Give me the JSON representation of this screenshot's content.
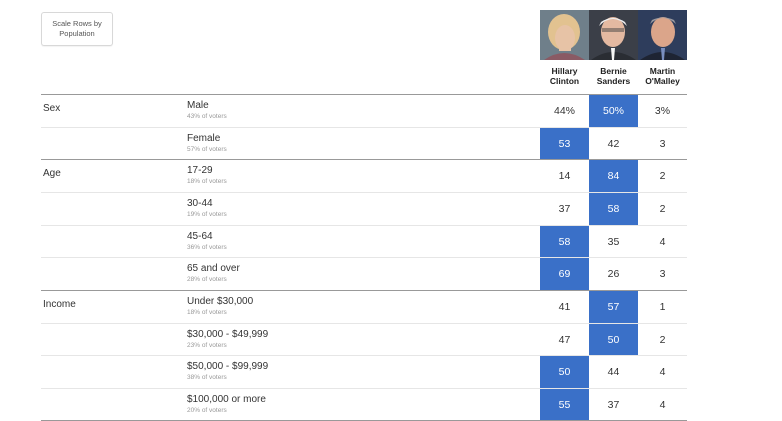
{
  "controls": {
    "scale_button": "Scale Rows by Population"
  },
  "candidates": [
    {
      "first": "Hillary",
      "last": "Clinton",
      "photo": "hillary-clinton-photo"
    },
    {
      "first": "Bernie",
      "last": "Sanders",
      "photo": "bernie-sanders-photo"
    },
    {
      "first": "Martin",
      "last": "O'Malley",
      "photo": "martin-omalley-photo"
    }
  ],
  "rows": [
    {
      "group": "Sex",
      "label": "Male",
      "share": "43% of voters",
      "values": [
        "44%",
        "50%",
        "3%"
      ],
      "winner": 1
    },
    {
      "group": "",
      "label": "Female",
      "share": "57% of voters",
      "values": [
        "53",
        "42",
        "3"
      ],
      "winner": 0
    },
    {
      "group": "Age",
      "label": "17-29",
      "share": "18% of voters",
      "values": [
        "14",
        "84",
        "2"
      ],
      "winner": 1
    },
    {
      "group": "",
      "label": "30-44",
      "share": "19% of voters",
      "values": [
        "37",
        "58",
        "2"
      ],
      "winner": 1
    },
    {
      "group": "",
      "label": "45-64",
      "share": "36% of voters",
      "values": [
        "58",
        "35",
        "4"
      ],
      "winner": 0
    },
    {
      "group": "",
      "label": "65 and over",
      "share": "28% of voters",
      "values": [
        "69",
        "26",
        "3"
      ],
      "winner": 0
    },
    {
      "group": "Income",
      "label": "Under $30,000",
      "share": "18% of voters",
      "values": [
        "41",
        "57",
        "1"
      ],
      "winner": 1
    },
    {
      "group": "",
      "label": "$30,000 - $49,999",
      "share": "23% of voters",
      "values": [
        "47",
        "50",
        "2"
      ],
      "winner": 1
    },
    {
      "group": "",
      "label": "$50,000 - $99,999",
      "share": "38% of voters",
      "values": [
        "50",
        "44",
        "4"
      ],
      "winner": 0
    },
    {
      "group": "",
      "label": "$100,000 or more",
      "share": "20% of voters",
      "values": [
        "55",
        "37",
        "4"
      ],
      "winner": 0
    }
  ],
  "colors": {
    "winner_fill": "#3a70c8",
    "winner_text": "#ffffff"
  }
}
